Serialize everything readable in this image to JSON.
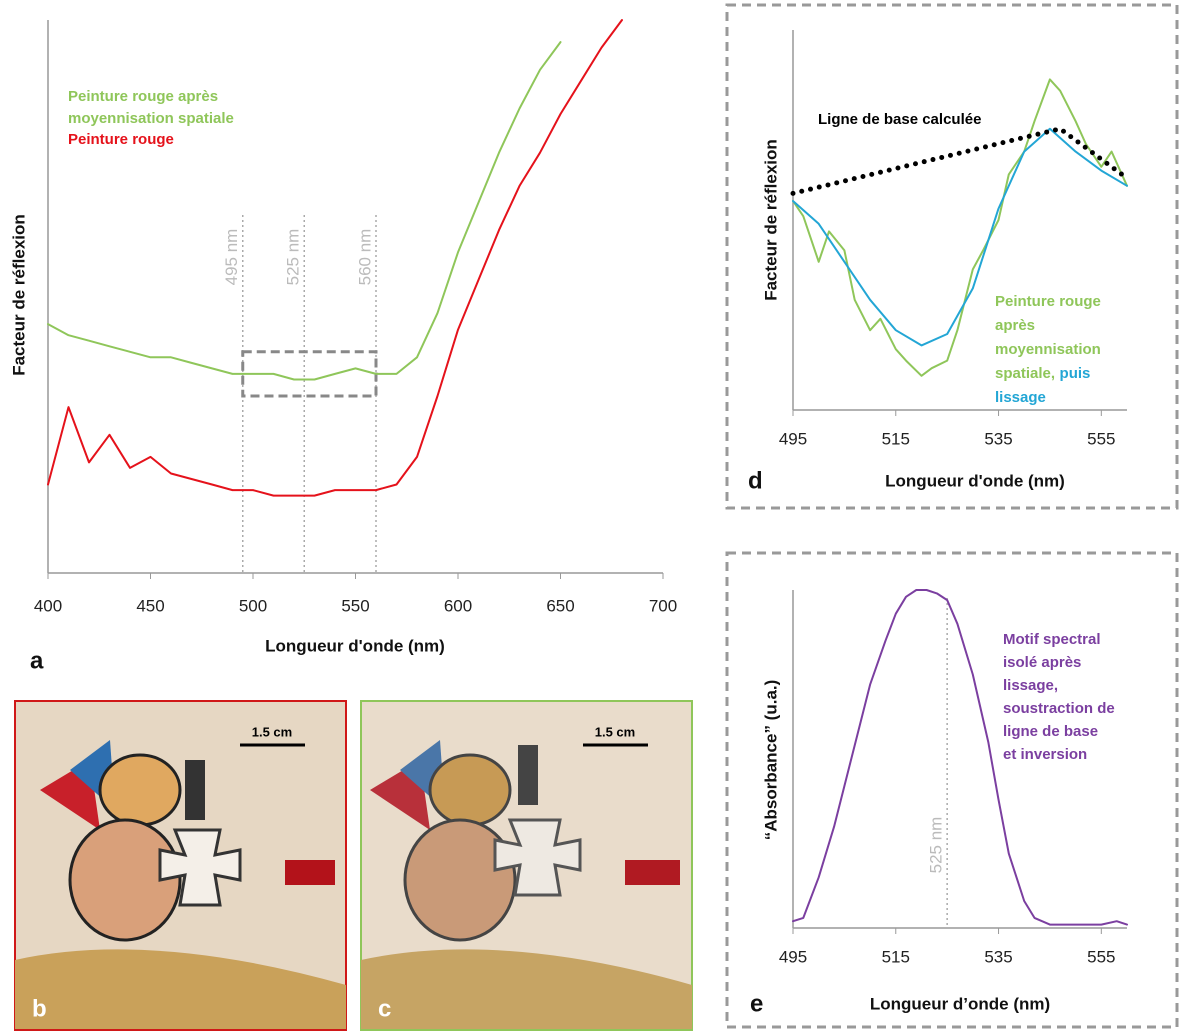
{
  "chart_data": [
    {
      "type": "line",
      "panel_label": "a",
      "x_label": "Longueur d'onde (nm)",
      "y_label": "Facteur de réflexion",
      "xlim": [
        400,
        700
      ],
      "ylim": [
        0,
        100
      ],
      "xticks": [
        400,
        450,
        500,
        550,
        600,
        650,
        700
      ],
      "x": [
        400,
        410,
        420,
        430,
        440,
        450,
        460,
        470,
        480,
        490,
        500,
        510,
        520,
        530,
        540,
        550,
        560,
        570,
        580,
        590,
        600,
        610,
        620,
        630,
        640,
        650,
        660,
        670,
        680
      ],
      "series": [
        {
          "name": "Peinture rouge après moyennisation spatiale",
          "color": "#8fc65a",
          "values": [
            45,
            43,
            42,
            41,
            40,
            39,
            39,
            38,
            37,
            36,
            36,
            36,
            35,
            35,
            36,
            37,
            36,
            36,
            39,
            47,
            58,
            67,
            76,
            84,
            91,
            96,
            null,
            null,
            null
          ]
        },
        {
          "name": "Peinture rouge",
          "color": "#e5121b",
          "values": [
            16,
            30,
            20,
            25,
            19,
            21,
            18,
            17,
            16,
            15,
            15,
            14,
            14,
            14,
            15,
            15,
            15,
            16,
            21,
            32,
            44,
            53,
            62,
            70,
            76,
            83,
            89,
            95,
            100
          ]
        }
      ],
      "vlines": [
        {
          "value": 495,
          "label": "495 nm"
        },
        {
          "value": 525,
          "label": "525 nm"
        },
        {
          "value": 560,
          "label": "560 nm"
        }
      ],
      "highlight": {
        "xlim": [
          495,
          560
        ],
        "ylim": [
          32,
          40
        ]
      }
    },
    {
      "type": "line",
      "panel_label": "d",
      "x_label": "Longueur d'onde (nm)",
      "y_label": "Facteur de réflexion",
      "xlim": [
        495,
        560
      ],
      "ylim": [
        0,
        100
      ],
      "xticks": [
        495,
        515,
        535,
        555
      ],
      "series": [
        {
          "name": "Peinture rouge après moyennisation spatiale,",
          "color": "#8fc65a",
          "x": [
            495,
            497,
            500,
            502,
            505,
            507,
            510,
            512,
            515,
            517,
            520,
            522,
            525,
            527,
            530,
            532,
            535,
            537,
            540,
            542,
            545,
            547,
            550,
            552,
            555,
            557,
            560
          ],
          "values": [
            55,
            51,
            39,
            47,
            42,
            29,
            21,
            24,
            16,
            13,
            9,
            11,
            13,
            21,
            37,
            42,
            50,
            62,
            68,
            76,
            87,
            84,
            76,
            70,
            64,
            68,
            59
          ]
        },
        {
          "name": "puis lissage",
          "color": "#23a6d5",
          "x": [
            495,
            500,
            505,
            510,
            515,
            520,
            525,
            530,
            535,
            540,
            545,
            550,
            555,
            560
          ],
          "values": [
            55,
            49,
            39,
            29,
            21,
            17,
            20,
            32,
            53,
            68,
            74,
            68,
            63,
            59
          ]
        },
        {
          "name": "Ligne de base calculée",
          "color": "#000000",
          "style": "dotted",
          "x": [
            495,
            547,
            560
          ],
          "values": [
            57,
            74,
            61
          ]
        }
      ]
    },
    {
      "type": "line",
      "panel_label": "e",
      "x_label": "Longueur d’onde (nm)",
      "y_label": "“Absorbance” (u.a.)",
      "xlim": [
        495,
        560
      ],
      "ylim": [
        0,
        100
      ],
      "xticks": [
        495,
        515,
        535,
        555
      ],
      "series": [
        {
          "name": "Motif spectral isolé après lissage, soustraction de ligne de base et inversion",
          "color": "#7b3fa0",
          "x": [
            495,
            497,
            500,
            503,
            505,
            508,
            510,
            513,
            515,
            517,
            519,
            521,
            523,
            525,
            527,
            530,
            533,
            535,
            537,
            540,
            542,
            545,
            550,
            555,
            558,
            560
          ],
          "values": [
            2,
            3,
            15,
            30,
            42,
            60,
            72,
            85,
            93,
            98,
            100,
            100,
            99,
            97,
            90,
            75,
            55,
            38,
            22,
            8,
            3,
            1,
            1,
            1,
            2,
            1
          ]
        }
      ],
      "vlines": [
        {
          "value": 525,
          "label": "525 nm"
        }
      ]
    }
  ],
  "images": [
    {
      "panel_label": "b",
      "scale_label": "1.5 cm"
    },
    {
      "panel_label": "c",
      "scale_label": "1.5 cm"
    }
  ]
}
